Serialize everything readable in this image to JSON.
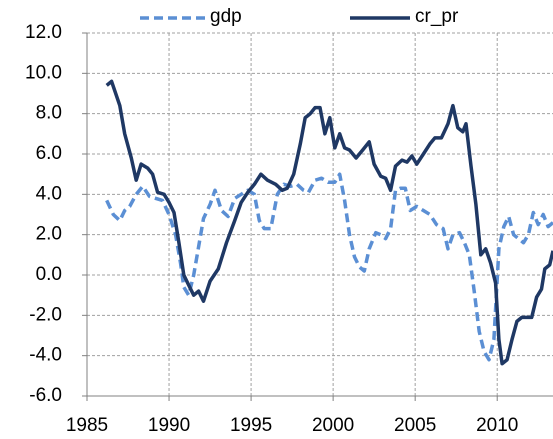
{
  "chart_data": {
    "type": "line",
    "xlim": [
      1985,
      2013.4
    ],
    "xticks": [
      1985,
      1990,
      1995,
      2000,
      2005,
      2010
    ],
    "ylim": [
      -6,
      12
    ],
    "yticks": [
      {
        "value": -6,
        "label": "-6.0"
      },
      {
        "value": -4,
        "label": "-4.0"
      },
      {
        "value": -2,
        "label": "-2.0"
      },
      {
        "value": 0,
        "label": "0.0"
      },
      {
        "value": 2,
        "label": "2.0"
      },
      {
        "value": 4,
        "label": "4.0"
      },
      {
        "value": 6,
        "label": "6.0"
      },
      {
        "value": 8,
        "label": "8.0"
      },
      {
        "value": 10,
        "label": "10.0"
      },
      {
        "value": 12,
        "label": "12.0"
      }
    ],
    "grid": true,
    "legend": "top",
    "series": [
      {
        "name": "gdp",
        "color": "#5b8fd4",
        "dashed": true,
        "x": [
          1986.2,
          1986.6,
          1987,
          1987.3,
          1987.6,
          1988,
          1988.4,
          1988.8,
          1989.2,
          1989.6,
          1990,
          1990.4,
          1990.7,
          1990.9,
          1991.2,
          1991.5,
          1991.8,
          1992.1,
          1992.5,
          1992.8,
          1993.2,
          1993.6,
          1994,
          1994.4,
          1994.8,
          1995.2,
          1995.5,
          1995.8,
          1996.2,
          1996.6,
          1997,
          1997.4,
          1997.8,
          1998.2,
          1998.5,
          1998.9,
          1999.3,
          1999.7,
          2000.1,
          2000.4,
          2000.7,
          2001,
          2001.3,
          2001.6,
          2001.9,
          2002.2,
          2002.6,
          2002.9,
          2003.2,
          2003.5,
          2003.8,
          2004.1,
          2004.4,
          2004.7,
          2005.1,
          2005.5,
          2005.9,
          2006.3,
          2006.7,
          2007,
          2007.3,
          2007.7,
          2008,
          2008.3,
          2008.6,
          2008.9,
          2009.2,
          2009.5,
          2009.8,
          2010.1,
          2010.4,
          2010.7,
          2011,
          2011.3,
          2011.6,
          2011.9,
          2012.2,
          2012.5,
          2012.8,
          2013.1,
          2013.4
        ],
        "values": [
          3.7,
          3.0,
          2.7,
          3.2,
          3.4,
          4.0,
          4.4,
          3.9,
          3.8,
          3.7,
          3.0,
          2.0,
          0.6,
          -0.6,
          -1.0,
          0.0,
          1.4,
          2.8,
          3.5,
          4.2,
          3.2,
          2.9,
          3.8,
          4.0,
          4.2,
          4.0,
          2.7,
          2.3,
          2.3,
          4.0,
          4.5,
          4.4,
          4.5,
          4.2,
          4.1,
          4.7,
          4.8,
          4.6,
          4.6,
          5.0,
          3.7,
          2.0,
          0.9,
          0.4,
          0.2,
          1.3,
          2.1,
          2.0,
          1.8,
          2.3,
          4.2,
          4.3,
          4.3,
          3.2,
          3.4,
          3.2,
          3.0,
          2.5,
          2.3,
          1.3,
          2.0,
          2.1,
          1.6,
          1.0,
          -0.8,
          -2.8,
          -3.8,
          -4.2,
          -3.2,
          1.3,
          2.4,
          2.9,
          2.0,
          1.8,
          1.6,
          2.0,
          3.1,
          2.5,
          3.0,
          2.4,
          2.6
        ]
      },
      {
        "name": "cr_pr",
        "color": "#1f3864",
        "dashed": false,
        "x": [
          1986.2,
          1986.5,
          1987,
          1987.3,
          1987.7,
          1988,
          1988.3,
          1988.7,
          1989,
          1989.3,
          1989.7,
          1990,
          1990.3,
          1990.6,
          1990.9,
          1991.2,
          1991.5,
          1991.8,
          1992.1,
          1992.5,
          1993,
          1993.5,
          1994,
          1994.4,
          1994.8,
          1995.2,
          1995.6,
          1996,
          1996.5,
          1996.9,
          1997.2,
          1997.6,
          1998,
          1998.3,
          1998.6,
          1998.9,
          1999.2,
          1999.5,
          1999.8,
          2000.1,
          2000.4,
          2000.7,
          2001,
          2001.4,
          2001.8,
          2002.2,
          2002.5,
          2002.9,
          2003.2,
          2003.5,
          2003.8,
          2004.2,
          2004.5,
          2004.8,
          2005.1,
          2005.5,
          2005.9,
          2006.2,
          2006.6,
          2007,
          2007.3,
          2007.6,
          2007.9,
          2008.1,
          2008.4,
          2008.7,
          2009,
          2009.3,
          2009.6,
          2009.9,
          2010.1,
          2010.3,
          2010.6,
          2010.9,
          2011.2,
          2011.5,
          2011.8,
          2012.1,
          2012.4,
          2012.7,
          2012.9,
          2013.2,
          2013.4
        ],
        "values": [
          9.4,
          9.6,
          8.4,
          7.0,
          5.8,
          4.7,
          5.5,
          5.3,
          5.0,
          4.1,
          4.0,
          3.6,
          3.1,
          1.6,
          0.0,
          -0.5,
          -1.0,
          -0.8,
          -1.3,
          -0.3,
          0.3,
          1.6,
          2.7,
          3.6,
          4.1,
          4.5,
          5.0,
          4.7,
          4.5,
          4.2,
          4.3,
          5.0,
          6.5,
          7.8,
          8.0,
          8.3,
          8.3,
          7.0,
          7.8,
          6.3,
          7.0,
          6.3,
          6.2,
          5.8,
          6.2,
          6.6,
          5.5,
          4.9,
          4.8,
          4.2,
          5.4,
          5.7,
          5.6,
          5.9,
          5.5,
          6.0,
          6.5,
          6.8,
          6.8,
          7.5,
          8.4,
          7.3,
          7.1,
          7.5,
          5.4,
          3.5,
          1.0,
          1.3,
          0.6,
          -0.4,
          -3.2,
          -4.4,
          -4.2,
          -3.2,
          -2.3,
          -2.1,
          -2.1,
          -2.1,
          -1.1,
          -0.7,
          0.3,
          0.5,
          1.2
        ]
      }
    ]
  }
}
